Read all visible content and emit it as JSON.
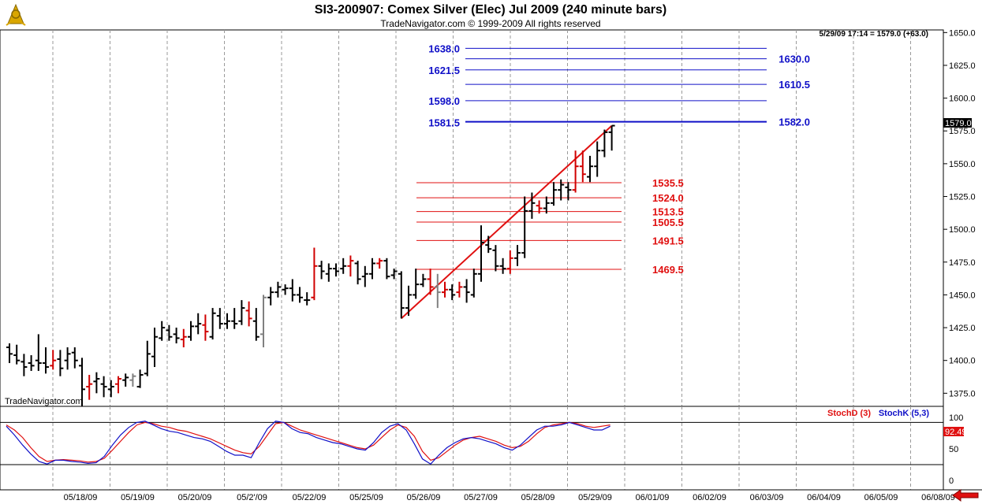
{
  "window": {
    "title": "SI3-200907:  Comex Silver (Elec) Jul 2009  (240 minute bars)",
    "subtitle": "TradeNavigator.com © 1999-2009 All rights reserved",
    "info": "5/29/09 17:14 = 1579.0 (+63.0)",
    "watermark": "TradeNavigator.com",
    "logo_icon": "sextant-logo-icon",
    "scroll_icon": "arrow-left-icon",
    "last_price_label": "1579.0",
    "stoch_last_label": "92.49"
  },
  "chart_data": {
    "type": "ohlc",
    "title": "SI3-200907:  Comex Silver (Elec) Jul 2009  (240 minute bars)",
    "ylim": [
      1365,
      1652
    ],
    "y_ticks": [
      1375.0,
      1400.0,
      1425.0,
      1450.0,
      1475.0,
      1500.0,
      1525.0,
      1550.0,
      1575.0,
      1600.0,
      1625.0,
      1650.0
    ],
    "y_tick_labels": [
      "1375.0",
      "1400.0",
      "1425.0",
      "1450.0",
      "1475.0",
      "1500.0",
      "1525.0",
      "1550.0",
      "1575.0",
      "1600.0",
      "1625.0",
      "1650.0"
    ],
    "x_labels": [
      "05/18/09",
      "05/19/09",
      "05/20/09",
      "05/2'/09",
      "05/22/09",
      "05/25/09",
      "05/26/09",
      "05/27/09",
      "05/28/09",
      "05/29/09",
      "06/01/09",
      "06/02/09",
      "06/03/09",
      "06/04/09",
      "06/05/09",
      "06/08/09"
    ],
    "grid": true,
    "last_price": 1579.0,
    "bars": [
      [
        1410,
        1413,
        1398,
        1405
      ],
      [
        1404,
        1412,
        1397,
        1400
      ],
      [
        1399,
        1405,
        1388,
        1395
      ],
      [
        1398,
        1404,
        1392,
        1396
      ],
      [
        1400,
        1420,
        1392,
        1398
      ],
      [
        1398,
        1410,
        1390,
        1395
      ],
      [
        1396,
        1408,
        1393,
        1400
      ],
      [
        1401,
        1408,
        1388,
        1394
      ],
      [
        1400,
        1410,
        1393,
        1405
      ],
      [
        1406,
        1410,
        1394,
        1400
      ],
      [
        1396,
        1402,
        1365,
        1378
      ],
      [
        1380,
        1389,
        1370,
        1382
      ],
      [
        1384,
        1391,
        1375,
        1386
      ],
      [
        1382,
        1388,
        1372,
        1380
      ],
      [
        1378,
        1385,
        1372,
        1380
      ],
      [
        1382,
        1388,
        1375,
        1386
      ],
      [
        1385,
        1390,
        1380,
        1387
      ],
      [
        1385,
        1390,
        1380,
        1388
      ],
      [
        1380,
        1393,
        1379,
        1389
      ],
      [
        1390,
        1415,
        1388,
        1405
      ],
      [
        1403,
        1425,
        1395,
        1418
      ],
      [
        1417,
        1430,
        1415,
        1425
      ],
      [
        1423,
        1427,
        1415,
        1418
      ],
      [
        1420,
        1425,
        1413,
        1417
      ],
      [
        1416,
        1424,
        1410,
        1418
      ],
      [
        1418,
        1430,
        1415,
        1426
      ],
      [
        1426,
        1436,
        1420,
        1428
      ],
      [
        1427,
        1435,
        1415,
        1422
      ],
      [
        1418,
        1440,
        1416,
        1436
      ],
      [
        1434,
        1440,
        1424,
        1428
      ],
      [
        1428,
        1436,
        1424,
        1430
      ],
      [
        1430,
        1440,
        1424,
        1428
      ],
      [
        1430,
        1446,
        1427,
        1440
      ],
      [
        1438,
        1445,
        1426,
        1432
      ],
      [
        1430,
        1440,
        1415,
        1418
      ],
      [
        1420,
        1450,
        1410,
        1448
      ],
      [
        1448,
        1456,
        1442,
        1452
      ],
      [
        1452,
        1460,
        1448,
        1456
      ],
      [
        1454,
        1458,
        1450,
        1455
      ],
      [
        1455,
        1462,
        1445,
        1450
      ],
      [
        1450,
        1456,
        1444,
        1448
      ],
      [
        1446,
        1452,
        1442,
        1446
      ],
      [
        1448,
        1486,
        1446,
        1472
      ],
      [
        1472,
        1476,
        1462,
        1468
      ],
      [
        1466,
        1474,
        1460,
        1470
      ],
      [
        1470,
        1474,
        1464,
        1468
      ],
      [
        1470,
        1478,
        1466,
        1472
      ],
      [
        1472,
        1480,
        1464,
        1476
      ],
      [
        1474,
        1476,
        1458,
        1462
      ],
      [
        1464,
        1472,
        1456,
        1466
      ],
      [
        1466,
        1478,
        1462,
        1474
      ],
      [
        1474,
        1478,
        1470,
        1476
      ],
      [
        1476,
        1478,
        1462,
        1464
      ],
      [
        1465,
        1470,
        1462,
        1468
      ],
      [
        1466,
        1468,
        1432,
        1440
      ],
      [
        1440,
        1457,
        1434,
        1450
      ],
      [
        1450,
        1470,
        1447,
        1458
      ],
      [
        1458,
        1466,
        1456,
        1462
      ],
      [
        1462,
        1470,
        1450,
        1456
      ],
      [
        1456,
        1466,
        1440,
        1452
      ],
      [
        1452,
        1460,
        1448,
        1454
      ],
      [
        1454,
        1458,
        1446,
        1450
      ],
      [
        1452,
        1460,
        1448,
        1456
      ],
      [
        1456,
        1462,
        1444,
        1452
      ],
      [
        1450,
        1470,
        1448,
        1466
      ],
      [
        1466,
        1503,
        1460,
        1490
      ],
      [
        1488,
        1495,
        1482,
        1485
      ],
      [
        1484,
        1488,
        1468,
        1472
      ],
      [
        1472,
        1478,
        1466,
        1470
      ],
      [
        1470,
        1484,
        1466,
        1478
      ],
      [
        1478,
        1488,
        1472,
        1482
      ],
      [
        1482,
        1525,
        1478,
        1514
      ],
      [
        1514,
        1528,
        1508,
        1520
      ],
      [
        1518,
        1522,
        1512,
        1516
      ],
      [
        1516,
        1525,
        1512,
        1520
      ],
      [
        1520,
        1536,
        1518,
        1530
      ],
      [
        1530,
        1538,
        1522,
        1534
      ],
      [
        1532,
        1536,
        1522,
        1530
      ],
      [
        1530,
        1560,
        1528,
        1548
      ],
      [
        1548,
        1560,
        1536,
        1542
      ],
      [
        1540,
        1556,
        1536,
        1548
      ],
      [
        1548,
        1567,
        1540,
        1560
      ],
      [
        1560,
        1576,
        1555,
        1574
      ],
      [
        1574,
        1579,
        1560,
        1579
      ]
    ],
    "trend_line": {
      "from_bar": 54,
      "from_price": 1432,
      "to_bar": 83,
      "to_price": 1579
    },
    "levels": [
      {
        "value": 1638.0,
        "label": "1638.0",
        "label_side": "left",
        "color": "#1010c8"
      },
      {
        "value": 1630.0,
        "label": "1630.0",
        "label_side": "right",
        "color": "#1010c8"
      },
      {
        "value": 1621.5,
        "label": "1621.5",
        "label_side": "left",
        "color": "#1010c8"
      },
      {
        "value": 1610.5,
        "label": "1610.5",
        "label_side": "right",
        "color": "#1010c8"
      },
      {
        "value": 1598.0,
        "label": "1598.0",
        "label_side": "left",
        "color": "#1010c8"
      },
      {
        "value": 1582.0,
        "label": "1582.0",
        "label_side": "right",
        "color": "#1010c8",
        "bold": true
      },
      {
        "value": 1581.5,
        "label": "1581.5",
        "label_side": "left",
        "color": "#1010c8"
      },
      {
        "value": 1535.5,
        "label": "1535.5",
        "label_side": "right",
        "color": "#e01010"
      },
      {
        "value": 1524.0,
        "label": "1524.0",
        "label_side": "right",
        "color": "#e01010"
      },
      {
        "value": 1513.5,
        "label": "1513.5",
        "label_side": "right",
        "color": "#e01010"
      },
      {
        "value": 1505.5,
        "label": "1505.5",
        "label_side": "right",
        "color": "#e01010"
      },
      {
        "value": 1491.5,
        "label": "1491.5",
        "label_side": "right",
        "color": "#e01010"
      },
      {
        "value": 1469.5,
        "label": "1469.5",
        "label_side": "right",
        "color": "#e01010"
      }
    ],
    "indicator": {
      "legend": [
        {
          "name": "StochD (3)",
          "color": "#e01010"
        },
        {
          "name": "StochK (5,3)",
          "color": "#1010c8"
        }
      ],
      "ylim": [
        0,
        100
      ],
      "y_ticks": [
        50,
        0
      ],
      "ref_lines": [
        92,
        25
      ],
      "stoch_d": [
        88,
        80,
        68,
        52,
        38,
        30,
        32,
        33,
        32,
        31,
        29,
        30,
        35,
        48,
        62,
        76,
        88,
        92,
        90,
        86,
        84,
        80,
        78,
        74,
        70,
        66,
        60,
        54,
        48,
        44,
        42,
        54,
        72,
        90,
        92,
        86,
        80,
        76,
        72,
        68,
        64,
        60,
        56,
        52,
        50,
        56,
        68,
        80,
        88,
        84,
        70,
        46,
        32,
        36,
        46,
        56,
        64,
        68,
        70,
        66,
        62,
        56,
        52,
        54,
        62,
        74,
        84,
        88,
        90,
        92,
        90,
        86,
        84,
        86,
        88
      ],
      "stoch_k": [
        86,
        72,
        56,
        42,
        30,
        26,
        32,
        32,
        30,
        29,
        27,
        28,
        38,
        56,
        72,
        84,
        92,
        94,
        88,
        82,
        78,
        76,
        72,
        68,
        66,
        62,
        54,
        46,
        40,
        40,
        36,
        60,
        82,
        94,
        92,
        82,
        76,
        74,
        68,
        64,
        60,
        58,
        54,
        50,
        48,
        60,
        76,
        86,
        90,
        80,
        58,
        34,
        26,
        40,
        52,
        60,
        66,
        68,
        66,
        62,
        58,
        52,
        48,
        56,
        68,
        80,
        86,
        86,
        88,
        92,
        88,
        84,
        80,
        80,
        86
      ]
    }
  }
}
